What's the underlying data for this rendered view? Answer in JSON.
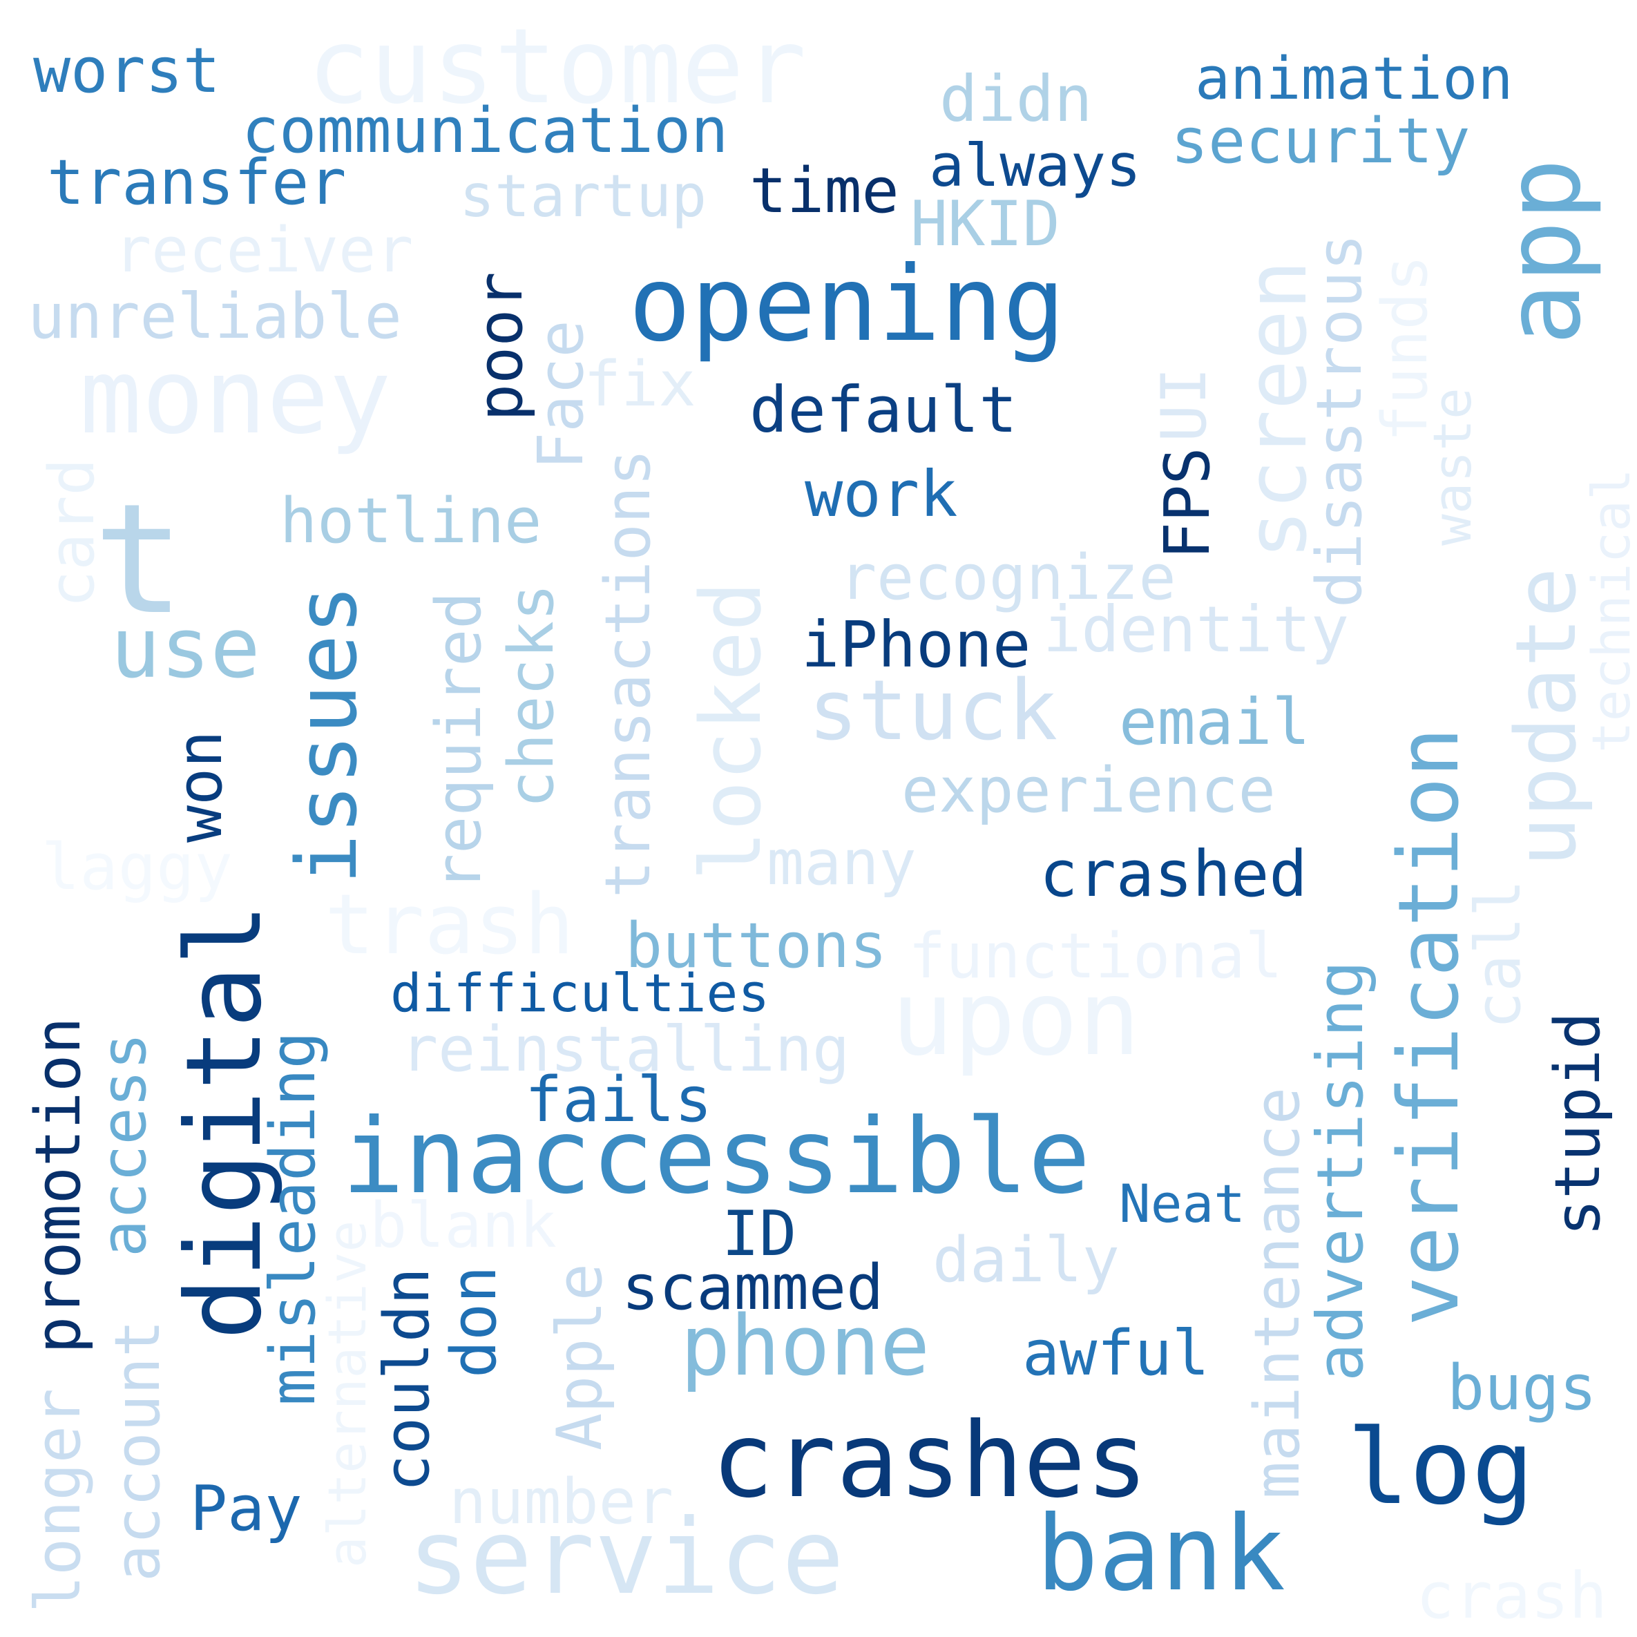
{
  "words": {
    "worst": {
      "text": "worst",
      "color": "#2e7ebc"
    },
    "customer": {
      "text": "customer",
      "color": "#eef5fc"
    },
    "didn": {
      "text": "didn",
      "color": "#b0d2e7"
    },
    "animation": {
      "text": "animation",
      "color": "#2979b9"
    },
    "communication": {
      "text": "communication",
      "color": "#3080bd"
    },
    "security": {
      "text": "security",
      "color": "#5ca4d0"
    },
    "transfer": {
      "text": "transfer",
      "color": "#2a7ab9"
    },
    "startup": {
      "text": "startup",
      "color": "#d0e2f2"
    },
    "time": {
      "text": "time",
      "color": "#08306b"
    },
    "always": {
      "text": "always",
      "color": "#0d4a8f"
    },
    "HKID": {
      "text": "HKID",
      "color": "#a9cfe5"
    },
    "app": {
      "text": "app",
      "color": "#6aaed6"
    },
    "receiver": {
      "text": "receiver",
      "color": "#e8f1fa"
    },
    "opening": {
      "text": "opening",
      "color": "#2171b5"
    },
    "unreliable": {
      "text": "unreliable",
      "color": "#c6dbef"
    },
    "money": {
      "text": "money",
      "color": "#eaf2fb"
    },
    "poor": {
      "text": "poor",
      "color": "#08306b"
    },
    "Face": {
      "text": "Face",
      "color": "#c6dbef"
    },
    "fix": {
      "text": "fix",
      "color": "#e3eef8"
    },
    "default": {
      "text": "default",
      "color": "#0b4083"
    },
    "UI": {
      "text": "UI",
      "color": "#dce9f6"
    },
    "screen": {
      "text": "screen",
      "color": "#deebf7"
    },
    "disastrous": {
      "text": "disastrous",
      "color": "#c6dbef"
    },
    "funds": {
      "text": "funds",
      "color": "#eef5fc"
    },
    "waste": {
      "text": "waste",
      "color": "#e1edf8"
    },
    "technical": {
      "text": "technical",
      "color": "#eaf2fb"
    },
    "card": {
      "text": "card",
      "color": "#eaf3fb"
    },
    "t": {
      "text": "t",
      "color": "#b9d6ea"
    },
    "hotline": {
      "text": "hotline",
      "color": "#a8cee4"
    },
    "work": {
      "text": "work",
      "color": "#1f6eb3"
    },
    "FPS": {
      "text": "FPS",
      "color": "#08326e"
    },
    "recognize": {
      "text": "recognize",
      "color": "#d3e4f3"
    },
    "use": {
      "text": "use",
      "color": "#9ac8e0"
    },
    "issues": {
      "text": "issues",
      "color": "#3b8bc2"
    },
    "required": {
      "text": "required",
      "color": "#b7d4ea"
    },
    "checks": {
      "text": "checks",
      "color": "#a9cfe5"
    },
    "transactions": {
      "text": "transactions",
      "color": "#c6dbef"
    },
    "locked": {
      "text": "locked",
      "color": "#dfecf7"
    },
    "iPhone": {
      "text": "iPhone",
      "color": "#083c7d"
    },
    "identity": {
      "text": "identity",
      "color": "#d9e7f5"
    },
    "stuck": {
      "text": "stuck",
      "color": "#d0e1f2"
    },
    "email": {
      "text": "email",
      "color": "#87bddc"
    },
    "verification": {
      "text": "verification",
      "color": "#6baed6"
    },
    "update": {
      "text": "update",
      "color": "#d6e6f4"
    },
    "won": {
      "text": "won",
      "color": "#083d7f"
    },
    "experience": {
      "text": "experience",
      "color": "#bcd7eb"
    },
    "laggy": {
      "text": "laggy",
      "color": "#f4f9fe"
    },
    "many": {
      "text": "many",
      "color": "#dbe9f6"
    },
    "crashed": {
      "text": "crashed",
      "color": "#08468b"
    },
    "call": {
      "text": "call",
      "color": "#e1edf8"
    },
    "trash": {
      "text": "trash",
      "color": "#f1f7fd"
    },
    "buttons": {
      "text": "buttons",
      "color": "#7fb9da"
    },
    "functional": {
      "text": "functional",
      "color": "#edf4fc"
    },
    "digital": {
      "text": "digital",
      "color": "#083c7d"
    },
    "difficulties": {
      "text": "difficulties",
      "color": "#0f5aa3"
    },
    "upon": {
      "text": "upon",
      "color": "#eef5fc"
    },
    "reinstalling": {
      "text": "reinstalling",
      "color": "#dae8f6"
    },
    "promotion": {
      "text": "promotion",
      "color": "#08306b"
    },
    "access": {
      "text": "access",
      "color": "#6aaed6"
    },
    "misleading": {
      "text": "misleading",
      "color": "#3888c1"
    },
    "advertising": {
      "text": "advertising",
      "color": "#6aaed6"
    },
    "stupid": {
      "text": "stupid",
      "color": "#083370"
    },
    "fails": {
      "text": "fails",
      "color": "#1c6aaf"
    },
    "inaccessible": {
      "text": "inaccessible",
      "color": "#3c8cc3"
    },
    "Neat": {
      "text": "Neat",
      "color": "#2474b7"
    },
    "maintenance": {
      "text": "maintenance",
      "color": "#c6dbef"
    },
    "alternative": {
      "text": "alternative",
      "color": "#eef5fc"
    },
    "blank": {
      "text": "blank",
      "color": "#f0f6fd"
    },
    "ID": {
      "text": "ID",
      "color": "#0c4888"
    },
    "daily": {
      "text": "daily",
      "color": "#d3e3f3"
    },
    "couldn": {
      "text": "couldn",
      "color": "#0d4a8f"
    },
    "don": {
      "text": "don",
      "color": "#2070b4"
    },
    "Apple": {
      "text": "Apple",
      "color": "#c6dbef"
    },
    "scammed": {
      "text": "scammed",
      "color": "#083b7c"
    },
    "longer": {
      "text": "longer",
      "color": "#c9ddf0"
    },
    "account": {
      "text": "account",
      "color": "#c6dbef"
    },
    "phone": {
      "text": "phone",
      "color": "#84bcdb"
    },
    "awful": {
      "text": "awful",
      "color": "#2373b6"
    },
    "bugs": {
      "text": "bugs",
      "color": "#6aaed6"
    },
    "crashes": {
      "text": "crashes",
      "color": "#083979"
    },
    "log": {
      "text": "log",
      "color": "#0a4a90"
    },
    "Pay": {
      "text": "Pay",
      "color": "#1c68ae"
    },
    "number": {
      "text": "number",
      "color": "#e3eef8"
    },
    "service": {
      "text": "service",
      "color": "#d6e6f4"
    },
    "bank": {
      "text": "bank",
      "color": "#3989c1"
    },
    "crash": {
      "text": "crash",
      "color": "#f1f7fd"
    }
  }
}
